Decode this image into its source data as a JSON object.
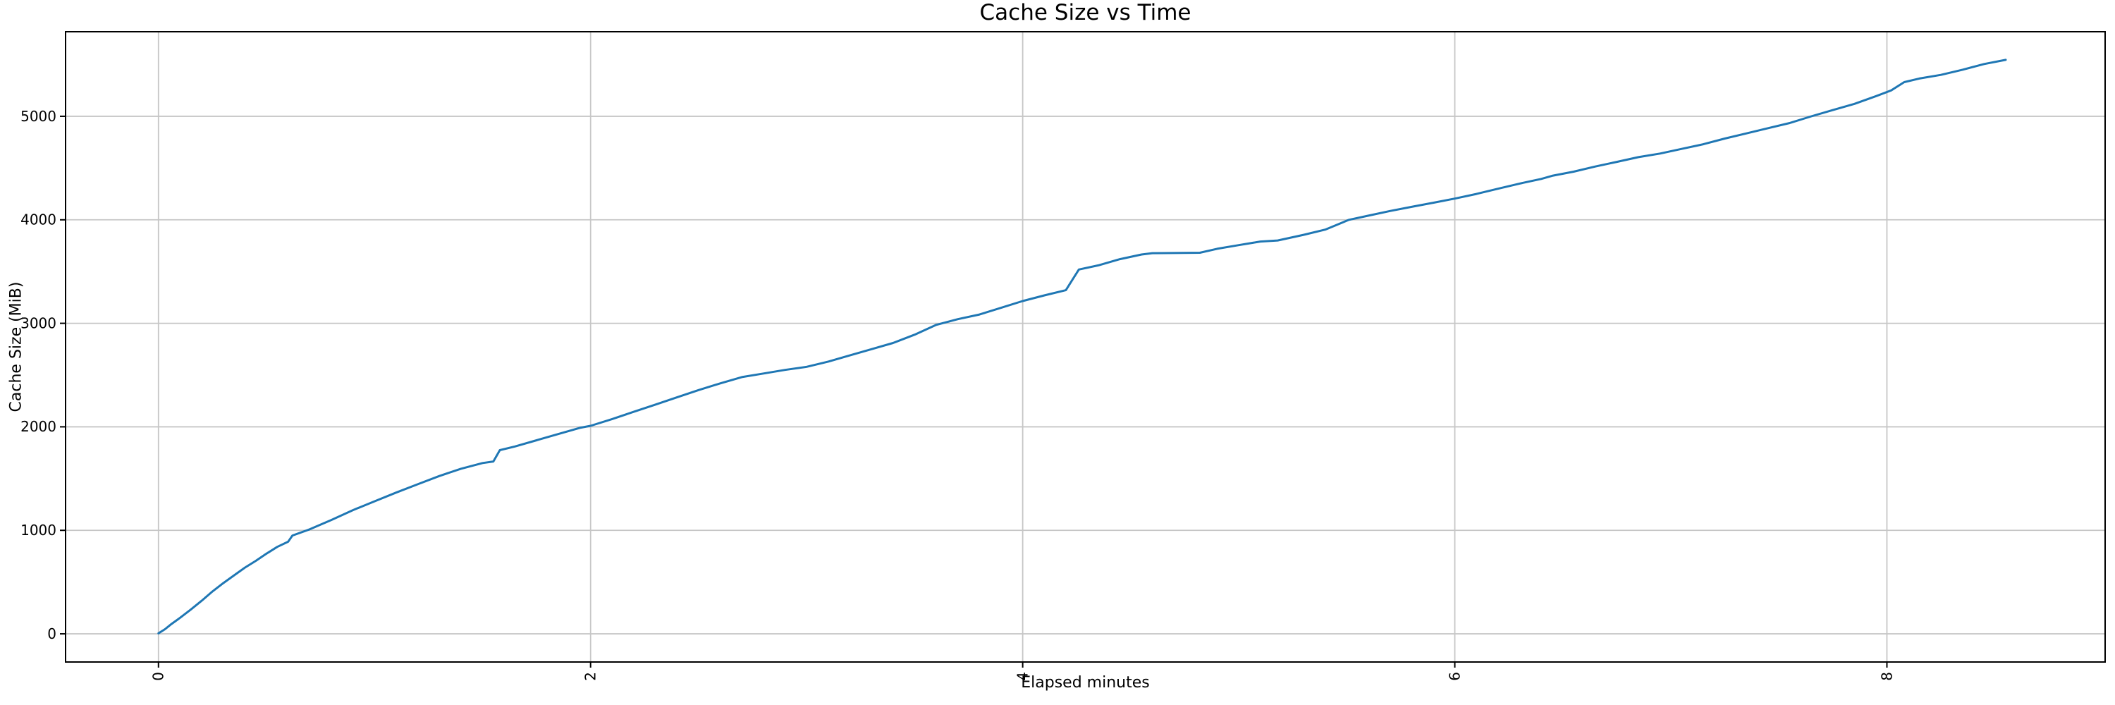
{
  "figure": {
    "background": "#ffffff"
  },
  "chart_data": {
    "type": "line",
    "title": "Cache Size vs Time",
    "xlabel": "Elapsed minutes",
    "ylabel": "Cache Size (MiB)",
    "x_ticks": [
      0,
      2,
      4,
      6,
      8
    ],
    "y_ticks": [
      0,
      1000,
      2000,
      3000,
      4000,
      5000
    ],
    "xlim": [
      -0.43,
      9.01
    ],
    "ylim": [
      -272,
      5817
    ],
    "x_tick_rotation": 90,
    "grid": true,
    "legend": "none",
    "line_color": "#1f77b4",
    "grid_color": "#c6c6c6",
    "spine_color": "#000000",
    "series": [
      {
        "name": "cache-size",
        "points": [
          [
            0.0,
            5
          ],
          [
            0.03,
            45
          ],
          [
            0.06,
            95
          ],
          [
            0.1,
            155
          ],
          [
            0.15,
            235
          ],
          [
            0.2,
            320
          ],
          [
            0.25,
            410
          ],
          [
            0.3,
            490
          ],
          [
            0.35,
            565
          ],
          [
            0.4,
            640
          ],
          [
            0.45,
            705
          ],
          [
            0.5,
            775
          ],
          [
            0.55,
            840
          ],
          [
            0.6,
            890
          ],
          [
            0.62,
            950
          ],
          [
            0.7,
            1010
          ],
          [
            0.8,
            1100
          ],
          [
            0.9,
            1195
          ],
          [
            1.0,
            1280
          ],
          [
            1.1,
            1365
          ],
          [
            1.2,
            1445
          ],
          [
            1.3,
            1525
          ],
          [
            1.4,
            1595
          ],
          [
            1.5,
            1650
          ],
          [
            1.55,
            1665
          ],
          [
            1.58,
            1775
          ],
          [
            1.65,
            1810
          ],
          [
            1.75,
            1870
          ],
          [
            1.85,
            1930
          ],
          [
            1.95,
            1990
          ],
          [
            2.0,
            2010
          ],
          [
            2.1,
            2075
          ],
          [
            2.2,
            2145
          ],
          [
            2.3,
            2215
          ],
          [
            2.4,
            2285
          ],
          [
            2.5,
            2355
          ],
          [
            2.6,
            2420
          ],
          [
            2.7,
            2480
          ],
          [
            2.8,
            2515
          ],
          [
            2.9,
            2550
          ],
          [
            3.0,
            2580
          ],
          [
            3.1,
            2630
          ],
          [
            3.2,
            2690
          ],
          [
            3.3,
            2750
          ],
          [
            3.4,
            2810
          ],
          [
            3.5,
            2890
          ],
          [
            3.6,
            2985
          ],
          [
            3.7,
            3040
          ],
          [
            3.8,
            3085
          ],
          [
            3.9,
            3150
          ],
          [
            4.0,
            3215
          ],
          [
            4.1,
            3270
          ],
          [
            4.2,
            3320
          ],
          [
            4.26,
            3520
          ],
          [
            4.35,
            3560
          ],
          [
            4.45,
            3620
          ],
          [
            4.55,
            3665
          ],
          [
            4.6,
            3678
          ],
          [
            4.82,
            3682
          ],
          [
            4.9,
            3720
          ],
          [
            5.0,
            3755
          ],
          [
            5.1,
            3790
          ],
          [
            5.18,
            3800
          ],
          [
            5.3,
            3855
          ],
          [
            5.4,
            3905
          ],
          [
            5.51,
            4000
          ],
          [
            5.6,
            4040
          ],
          [
            5.7,
            4085
          ],
          [
            5.8,
            4125
          ],
          [
            5.9,
            4165
          ],
          [
            6.0,
            4205
          ],
          [
            6.1,
            4250
          ],
          [
            6.2,
            4300
          ],
          [
            6.3,
            4350
          ],
          [
            6.4,
            4395
          ],
          [
            6.45,
            4425
          ],
          [
            6.55,
            4465
          ],
          [
            6.65,
            4515
          ],
          [
            6.75,
            4560
          ],
          [
            6.85,
            4605
          ],
          [
            6.95,
            4640
          ],
          [
            7.05,
            4685
          ],
          [
            7.15,
            4730
          ],
          [
            7.25,
            4785
          ],
          [
            7.35,
            4835
          ],
          [
            7.45,
            4885
          ],
          [
            7.55,
            4935
          ],
          [
            7.65,
            5000
          ],
          [
            7.75,
            5060
          ],
          [
            7.85,
            5120
          ],
          [
            7.95,
            5195
          ],
          [
            8.02,
            5250
          ],
          [
            8.08,
            5330
          ],
          [
            8.15,
            5365
          ],
          [
            8.25,
            5400
          ],
          [
            8.35,
            5450
          ],
          [
            8.45,
            5505
          ],
          [
            8.55,
            5545
          ]
        ]
      }
    ]
  }
}
